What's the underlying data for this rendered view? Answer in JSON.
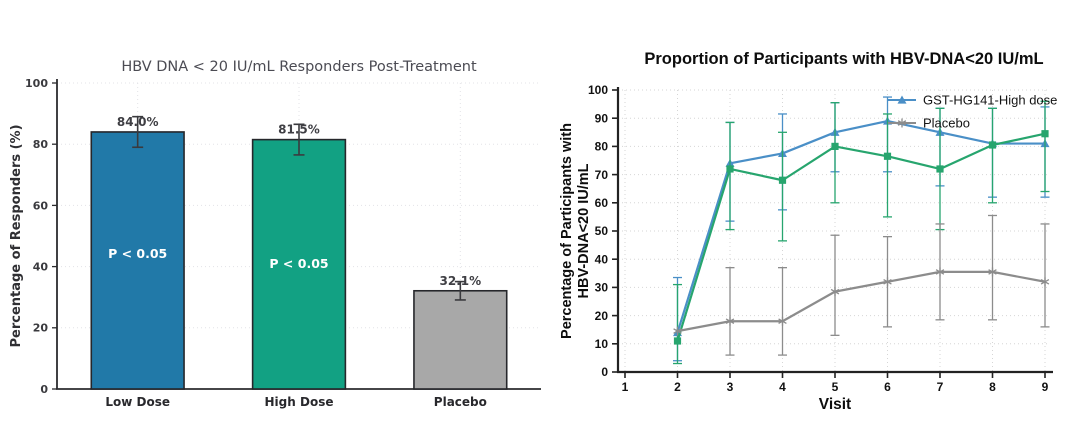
{
  "chart_data": [
    {
      "type": "bar",
      "title": "HBV DNA < 20 IU/mL Responders Post-Treatment",
      "ylabel": "Percentage of Responders (%)",
      "categories": [
        "Low Dose",
        "High Dose",
        "Placebo"
      ],
      "values": [
        84.0,
        81.5,
        32.1
      ],
      "value_labels": [
        "84.0%",
        "81.5%",
        "32.1%"
      ],
      "bar_colors": [
        "#2179a8",
        "#12a183",
        "#a8a8a8"
      ],
      "bar_edge_color": "#26272b",
      "err_lo": [
        5,
        5,
        3
      ],
      "err_hi": [
        5,
        5,
        3
      ],
      "error_color": "#3a3a3e",
      "annotations": [
        {
          "text": "P < 0.05",
          "bar": 0,
          "y": 42.8
        },
        {
          "text": "P < 0.05",
          "bar": 1,
          "y": 39.5
        }
      ],
      "ylim": [
        0,
        100
      ],
      "yticks": [
        0,
        20,
        40,
        60,
        80,
        100
      ],
      "grid": true,
      "legend_position": "none"
    },
    {
      "type": "line",
      "title": "Proportion of Participants with HBV-DNA<20 IU/mL",
      "xlabel": "Visit",
      "ylabel_lines": [
        "Percentage of Participants with",
        "HBV-DNA<20 IU/mL"
      ],
      "xlim": [
        1,
        9
      ],
      "ylim": [
        0,
        100
      ],
      "xticks": [
        1,
        2,
        3,
        4,
        5,
        6,
        7,
        8,
        9
      ],
      "yticks": [
        0,
        10,
        20,
        30,
        40,
        50,
        60,
        70,
        80,
        90,
        100
      ],
      "grid": true,
      "legend_position": "upper-right-inside",
      "series": [
        {
          "name": "GST-HG141-High dose",
          "color": "#4a8fc7",
          "marker": "triangle",
          "in_legend": true,
          "x": [
            2,
            3,
            4,
            5,
            6,
            7,
            8,
            9
          ],
          "y": [
            14,
            74,
            77.5,
            85,
            89,
            85,
            81,
            81
          ],
          "err_lo": [
            10,
            20.5,
            20,
            14,
            18,
            19,
            19,
            19
          ],
          "err_hi": [
            19.5,
            14.5,
            14,
            10.5,
            8.5,
            8.5,
            12.5,
            13
          ]
        },
        {
          "name": "",
          "color": "#27a56e",
          "marker": "square",
          "in_legend": false,
          "x": [
            2,
            3,
            4,
            5,
            6,
            7,
            8,
            9
          ],
          "y": [
            11,
            72,
            68,
            80,
            76.5,
            72,
            80.5,
            84.5
          ],
          "err_lo": [
            8,
            21.5,
            21.5,
            20,
            21.5,
            21.5,
            20.5,
            20.5
          ],
          "err_hi": [
            20,
            16.5,
            17,
            15.5,
            15,
            21.5,
            13,
            11.5
          ]
        },
        {
          "name": "Placebo",
          "color": "#8c8c8c",
          "marker": "star",
          "in_legend": true,
          "x": [
            2,
            3,
            4,
            5,
            6,
            7,
            8,
            9
          ],
          "y": [
            14.5,
            18,
            18,
            28.5,
            32,
            35.5,
            35.5,
            32
          ],
          "err_lo": [
            0,
            12,
            12,
            15.5,
            16,
            17,
            17,
            16
          ],
          "err_hi": [
            0,
            19,
            19,
            20,
            16,
            17,
            20,
            20.5
          ]
        }
      ]
    }
  ]
}
